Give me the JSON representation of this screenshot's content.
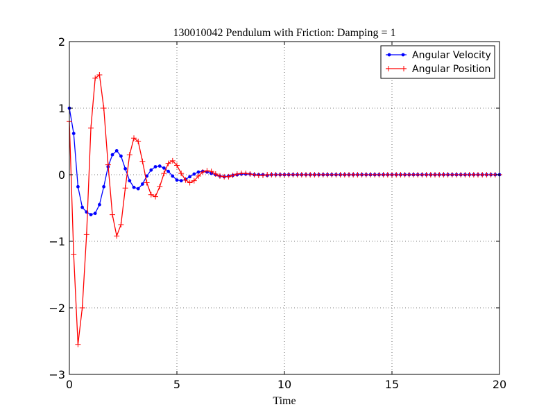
{
  "chart_data": {
    "type": "line",
    "title": "130010042 Pendulum with Friction: Damping = 1",
    "xlabel": "Time",
    "ylabel": "",
    "xlim": [
      0,
      20
    ],
    "ylim": [
      -3,
      2
    ],
    "xticks": [
      0,
      5,
      10,
      15,
      20
    ],
    "yticks": [
      -3,
      -2,
      -1,
      0,
      1,
      2
    ],
    "xtick_labels": [
      "0",
      "5",
      "10",
      "15",
      "20"
    ],
    "ytick_labels": [
      "−3",
      "−2",
      "−1",
      "0",
      "1",
      "2"
    ],
    "grid": true,
    "legend_position": "top-right",
    "series": [
      {
        "name": "Angular Velocity",
        "color": "#0000ff",
        "marker": "dot",
        "x": [
          0.0,
          0.2,
          0.4,
          0.6,
          0.8,
          1.0,
          1.2,
          1.4,
          1.6,
          1.8,
          2.0,
          2.2,
          2.4,
          2.6,
          2.8,
          3.0,
          3.2,
          3.4,
          3.6,
          3.8,
          4.0,
          4.2,
          4.4,
          4.6,
          4.8,
          5.0,
          5.2,
          5.4,
          5.6,
          5.8,
          6.0,
          6.2,
          6.4,
          6.6,
          6.8,
          7.0,
          7.2,
          7.4,
          7.6,
          7.8,
          8.0,
          8.2,
          8.4,
          8.6,
          8.8,
          9.0,
          9.2,
          9.4,
          9.6,
          9.8,
          10.0,
          10.2,
          10.4,
          10.6,
          10.8,
          11.0,
          11.2,
          11.4,
          11.6,
          11.8,
          12.0,
          12.2,
          12.4,
          12.6,
          12.8,
          13.0,
          13.2,
          13.4,
          13.6,
          13.8,
          14.0,
          14.2,
          14.4,
          14.6,
          14.8,
          15.0,
          15.2,
          15.4,
          15.6,
          15.8,
          16.0,
          16.2,
          16.4,
          16.6,
          16.8,
          17.0,
          17.2,
          17.4,
          17.6,
          17.8,
          18.0,
          18.2,
          18.4,
          18.6,
          18.8,
          19.0,
          19.2,
          19.4,
          19.6,
          19.8,
          20.0
        ],
        "values": [
          1.0,
          0.62,
          -0.18,
          -0.49,
          -0.56,
          -0.6,
          -0.58,
          -0.45,
          -0.18,
          0.12,
          0.3,
          0.36,
          0.28,
          0.09,
          -0.09,
          -0.19,
          -0.21,
          -0.14,
          -0.02,
          0.07,
          0.12,
          0.13,
          0.1,
          0.05,
          -0.02,
          -0.08,
          -0.09,
          -0.07,
          -0.03,
          0.01,
          0.04,
          0.05,
          0.04,
          0.02,
          -0.0,
          -0.02,
          -0.03,
          -0.02,
          -0.01,
          0.0,
          0.01,
          0.01,
          0.01,
          0.0,
          -0.0,
          -0.0,
          -0.01,
          -0.0,
          -0.0,
          0.0,
          0.0,
          0.0,
          0.0,
          0.0,
          0.0,
          0.0,
          0.0,
          0.0,
          0.0,
          0.0,
          0.0,
          0.0,
          0.0,
          0.0,
          0.0,
          0.0,
          0.0,
          0.0,
          0.0,
          0.0,
          0.0,
          0.0,
          0.0,
          0.0,
          0.0,
          0.0,
          0.0,
          0.0,
          0.0,
          0.0,
          0.0,
          0.0,
          0.0,
          0.0,
          0.0,
          0.0,
          0.0,
          0.0,
          0.0,
          0.0,
          0.0,
          0.0,
          0.0,
          0.0,
          0.0,
          0.0,
          0.0,
          0.0,
          0.0,
          0.0,
          0.0
        ]
      },
      {
        "name": "Angular Position",
        "color": "#ff0000",
        "marker": "plus",
        "x": [
          0.0,
          0.2,
          0.4,
          0.6,
          0.8,
          1.0,
          1.2,
          1.4,
          1.6,
          1.8,
          2.0,
          2.2,
          2.4,
          2.6,
          2.8,
          3.0,
          3.2,
          3.4,
          3.6,
          3.8,
          4.0,
          4.2,
          4.4,
          4.6,
          4.8,
          5.0,
          5.2,
          5.4,
          5.6,
          5.8,
          6.0,
          6.2,
          6.4,
          6.6,
          6.8,
          7.0,
          7.2,
          7.4,
          7.6,
          7.8,
          8.0,
          8.2,
          8.4,
          8.6,
          8.8,
          9.0,
          9.2,
          9.4,
          9.6,
          9.8,
          10.0,
          10.2,
          10.4,
          10.6,
          10.8,
          11.0,
          11.2,
          11.4,
          11.6,
          11.8,
          12.0,
          12.2,
          12.4,
          12.6,
          12.8,
          13.0,
          13.2,
          13.4,
          13.6,
          13.8,
          14.0,
          14.2,
          14.4,
          14.6,
          14.8,
          15.0,
          15.2,
          15.4,
          15.6,
          15.8,
          16.0,
          16.2,
          16.4,
          16.6,
          16.8,
          17.0,
          17.2,
          17.4,
          17.6,
          17.8,
          18.0,
          18.2,
          18.4,
          18.6,
          18.8,
          19.0,
          19.2,
          19.4,
          19.6,
          19.8,
          20.0
        ],
        "values": [
          0.8,
          -1.2,
          -2.55,
          -2.0,
          -0.9,
          0.7,
          1.45,
          1.5,
          1.0,
          0.15,
          -0.6,
          -0.92,
          -0.75,
          -0.2,
          0.3,
          0.55,
          0.5,
          0.2,
          -0.12,
          -0.3,
          -0.33,
          -0.18,
          0.02,
          0.17,
          0.21,
          0.14,
          0.02,
          -0.08,
          -0.12,
          -0.09,
          -0.02,
          0.04,
          0.06,
          0.05,
          0.01,
          -0.02,
          -0.03,
          -0.03,
          -0.01,
          0.01,
          0.02,
          0.02,
          0.01,
          -0.0,
          -0.01,
          -0.01,
          -0.0,
          0.0,
          0.0,
          0.0,
          0.0,
          0.0,
          0.0,
          0.0,
          0.0,
          0.0,
          0.0,
          0.0,
          0.0,
          0.0,
          0.0,
          0.0,
          0.0,
          0.0,
          0.0,
          0.0,
          0.0,
          0.0,
          0.0,
          0.0,
          0.0,
          0.0,
          0.0,
          0.0,
          0.0,
          0.0,
          0.0,
          0.0,
          0.0,
          0.0,
          0.0,
          0.0,
          0.0,
          0.0,
          0.0,
          0.0,
          0.0,
          0.0,
          0.0,
          0.0,
          0.0,
          0.0,
          0.0,
          0.0,
          0.0,
          0.0,
          0.0,
          0.0,
          0.0,
          0.0,
          0.0
        ]
      }
    ]
  }
}
